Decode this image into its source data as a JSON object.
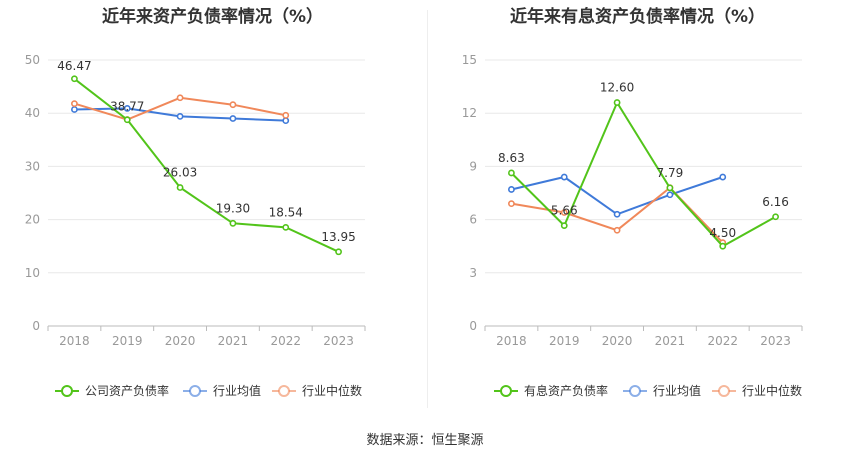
{
  "source_text": "数据来源：恒生聚源",
  "chart_data": [
    {
      "type": "line",
      "title": "近年来资产负债率情况（%）",
      "categories": [
        "2018",
        "2019",
        "2020",
        "2021",
        "2022",
        "2023"
      ],
      "ylim": [
        0,
        50
      ],
      "yticks": [
        0,
        10,
        20,
        30,
        40,
        50
      ],
      "grid": true,
      "legend_position": "bottom",
      "series": [
        {
          "name": "公司资产负债率",
          "color": "#52c41a",
          "values": [
            46.47,
            38.77,
            26.03,
            19.3,
            18.54,
            13.95
          ],
          "labels": [
            "46.47",
            "38.77",
            "26.03",
            "19.30",
            "18.54",
            "13.95"
          ]
        },
        {
          "name": "行业均值",
          "color": "#3f7ad9",
          "values": [
            40.7,
            40.9,
            39.4,
            39.0,
            38.6,
            null
          ]
        },
        {
          "name": "行业中位数",
          "color": "#f0885a",
          "values": [
            41.8,
            38.8,
            42.9,
            41.6,
            39.6,
            null
          ]
        }
      ]
    },
    {
      "type": "line",
      "title": "近年来有息资产负债率情况（%）",
      "categories": [
        "2018",
        "2019",
        "2020",
        "2021",
        "2022",
        "2023"
      ],
      "ylim": [
        0,
        15
      ],
      "yticks": [
        0,
        3,
        6,
        9,
        12,
        15
      ],
      "grid": true,
      "legend_position": "bottom",
      "series": [
        {
          "name": "有息资产负债率",
          "color": "#52c41a",
          "values": [
            8.63,
            5.66,
            12.6,
            7.79,
            4.5,
            6.16
          ],
          "labels": [
            "8.63",
            "5.66",
            "12.60",
            "7.79",
            "4.50",
            "6.16"
          ]
        },
        {
          "name": "行业均值",
          "color": "#3f7ad9",
          "values": [
            7.7,
            8.4,
            6.3,
            7.4,
            8.4,
            null
          ]
        },
        {
          "name": "行业中位数",
          "color": "#f0885a",
          "values": [
            6.9,
            6.4,
            5.4,
            7.8,
            4.7,
            null
          ]
        }
      ]
    }
  ]
}
